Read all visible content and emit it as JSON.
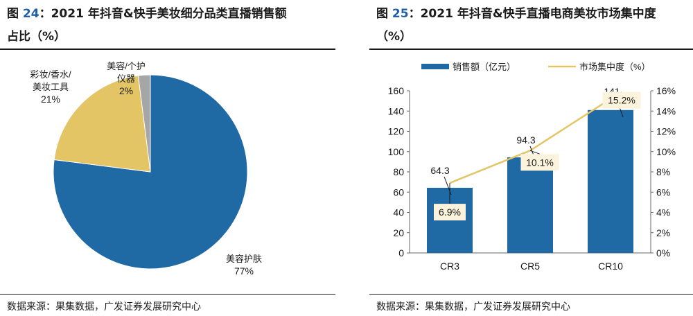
{
  "left": {
    "fig_prefix": "图",
    "fig_num": "24",
    "title_line1": "：2021 年抖音&快手美妆细分品类直播销售额",
    "title_line2": "占比（%）",
    "source": "数据来源：果集数据，广发证券发展研究中心"
  },
  "right": {
    "fig_prefix": "图",
    "fig_num": "25",
    "title_line1": "：2021 年抖音&快手直播电商美妆市场集中度",
    "title_line2": "（%）",
    "source": "数据来源：果集数据，广发证券发展研究中心"
  },
  "chart_data": [
    {
      "type": "pie",
      "title": "",
      "slices": [
        {
          "label_lines": [
            "美容护肤"
          ],
          "pct_label": "77%",
          "value": 77,
          "color": "#1f6aa5"
        },
        {
          "label_lines": [
            "彩妆/香水/",
            "美妆工具"
          ],
          "pct_label": "21%",
          "value": 21,
          "color": "#e3c565"
        },
        {
          "label_lines": [
            "美容/个护",
            "仪器"
          ],
          "pct_label": "2%",
          "value": 2,
          "color": "#a6a6a6"
        }
      ]
    },
    {
      "type": "bar",
      "title": "",
      "categories": [
        "CR3",
        "CR5",
        "CR10"
      ],
      "series": [
        {
          "name": "销售额（亿元）",
          "kind": "bar",
          "axis": "left",
          "values": [
            64.3,
            94.3,
            141
          ],
          "labels": [
            "64.3",
            "94.3",
            "141"
          ],
          "color": "#1f6aa5"
        },
        {
          "name": "市场集中度（%）",
          "kind": "line",
          "axis": "right",
          "values": [
            6.9,
            10.1,
            15.2
          ],
          "labels": [
            "6.9%",
            "10.1%",
            "15.2%"
          ],
          "color": "#e3c565"
        }
      ],
      "ylim_left": [
        0,
        160
      ],
      "yticks_left": [
        "0",
        "20",
        "40",
        "60",
        "80",
        "100",
        "120",
        "140",
        "160"
      ],
      "ylim_right": [
        0,
        16
      ],
      "yticks_right": [
        "0%",
        "2%",
        "4%",
        "6%",
        "8%",
        "10%",
        "12%",
        "14%",
        "16%"
      ],
      "legend_position": "top"
    }
  ]
}
